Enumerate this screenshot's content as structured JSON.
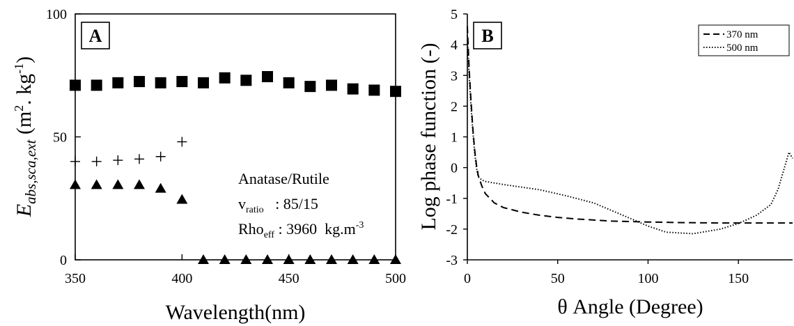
{
  "chart_data": [
    {
      "type": "scatter",
      "panel_label": "A",
      "xlabel": "Wavelength(nm)",
      "ylabel_main": "E",
      "ylabel_sub": "abs,sca,ext",
      "ylabel_unit_open": " (m",
      "ylabel_unit_sup1": "2",
      "ylabel_unit_mid": ". kg",
      "ylabel_unit_sup2": "-1",
      "ylabel_unit_close": ")",
      "xlim": [
        350,
        500
      ],
      "ylim": [
        0,
        100
      ],
      "xticks": [
        "350",
        "400",
        "450",
        "500"
      ],
      "yticks": [
        "0",
        "50",
        "100"
      ],
      "annotation": {
        "line1": "Anatase/Rutile",
        "line2_main": "v",
        "line2_sub": "ratio",
        "line2_rest": "   : 85/15",
        "line3_main": "Rho",
        "line3_sub": "eff",
        "line3_rest": " : 3960  kg.m",
        "line3_sup": "-3"
      },
      "series": [
        {
          "marker": "square",
          "x": [
            350,
            360,
            370,
            380,
            390,
            400,
            410,
            420,
            430,
            440,
            450,
            460,
            470,
            480,
            490,
            500
          ],
          "y": [
            71,
            71,
            72,
            72.5,
            72,
            72.5,
            72,
            74,
            73,
            74.5,
            72,
            70.5,
            71,
            69.5,
            69,
            68.5
          ]
        },
        {
          "marker": "plus",
          "x": [
            350,
            360,
            370,
            380,
            390,
            400
          ],
          "y": [
            40,
            40,
            40.5,
            41,
            42,
            48
          ]
        },
        {
          "marker": "triangle",
          "x": [
            350,
            360,
            370,
            380,
            390,
            400,
            410,
            420,
            430,
            440,
            450,
            460,
            470,
            480,
            490,
            500
          ],
          "y": [
            30.5,
            30.5,
            30.5,
            30.5,
            29,
            24.5,
            0,
            0,
            0,
            0,
            0,
            0,
            0,
            0,
            0,
            0
          ]
        }
      ]
    },
    {
      "type": "line",
      "panel_label": "B",
      "xlabel": "θ Angle (Degree)",
      "ylabel": "Log phase function (-)",
      "xlim": [
        0,
        180
      ],
      "ylim": [
        -3,
        5
      ],
      "xticks": [
        "0",
        "50",
        "100",
        "150"
      ],
      "yticks": [
        "-3",
        "-2",
        "-1",
        "0",
        "1",
        "2",
        "3",
        "4",
        "5"
      ],
      "series": [
        {
          "name": "370 nm",
          "style": "dashed",
          "x": [
            0,
            1,
            2,
            3,
            4,
            5,
            6,
            8,
            10,
            15,
            20,
            30,
            40,
            50,
            60,
            80,
            100,
            120,
            140,
            160,
            180
          ],
          "y": [
            4.6,
            3.2,
            2.2,
            1.3,
            0.6,
            0.1,
            -0.25,
            -0.6,
            -0.85,
            -1.15,
            -1.3,
            -1.45,
            -1.55,
            -1.62,
            -1.67,
            -1.74,
            -1.77,
            -1.79,
            -1.8,
            -1.8,
            -1.8
          ]
        },
        {
          "name": "500 nm",
          "style": "dotted",
          "x": [
            0,
            1,
            2,
            3,
            4,
            5,
            6,
            8,
            10,
            20,
            40,
            55,
            70,
            80,
            90,
            100,
            110,
            125,
            140,
            150,
            160,
            168,
            172,
            176,
            178,
            180
          ],
          "y": [
            4.3,
            3.0,
            2.0,
            1.2,
            0.5,
            0.0,
            -0.3,
            -0.4,
            -0.45,
            -0.55,
            -0.72,
            -0.92,
            -1.15,
            -1.4,
            -1.65,
            -1.9,
            -2.1,
            -2.15,
            -2.0,
            -1.82,
            -1.55,
            -1.2,
            -0.7,
            0.1,
            0.5,
            0.3
          ]
        }
      ]
    }
  ]
}
